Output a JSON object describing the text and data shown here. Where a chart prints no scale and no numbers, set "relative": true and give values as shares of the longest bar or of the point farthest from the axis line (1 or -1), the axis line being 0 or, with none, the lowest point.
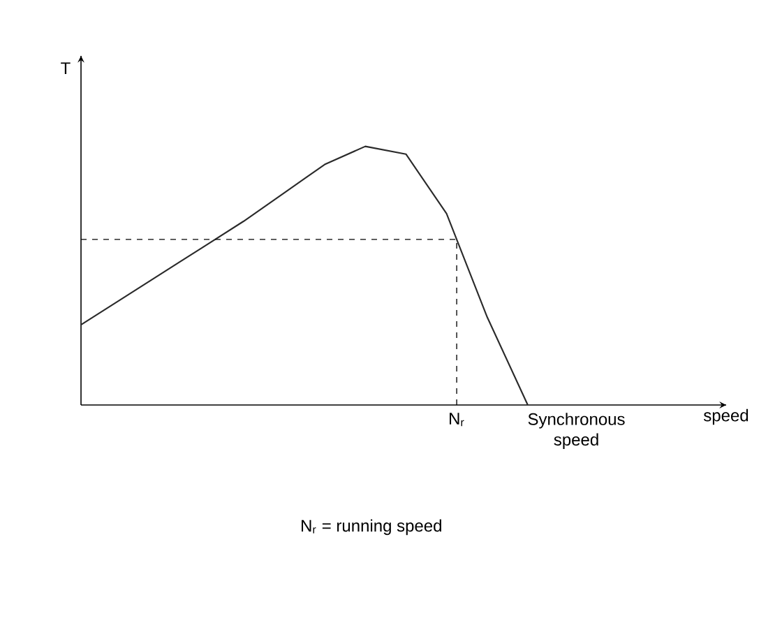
{
  "chart_data": {
    "type": "line",
    "relative": true,
    "ylabel": "T",
    "categories": [
      null,
      null,
      null,
      null,
      null,
      null,
      null,
      null,
      null,
      null,
      null,
      null
    ],
    "series": [
      {
        "color": "#2a2a2a",
        "values": [
          0.31,
          0.41,
          0.51,
          0.61,
          0.71,
          0.82,
          0.93,
          1.0,
          0.97,
          0.74,
          0.34,
          0
        ]
      }
    ],
    "ref_lines": [
      {
        "axis": "y",
        "value": 0.64,
        "line_style": "dashed"
      }
    ],
    "annotations": [
      "N$_{r}$",
      "Synchronous speed",
      "N$_{r}$ = running speed",
      "speed"
    ]
  }
}
